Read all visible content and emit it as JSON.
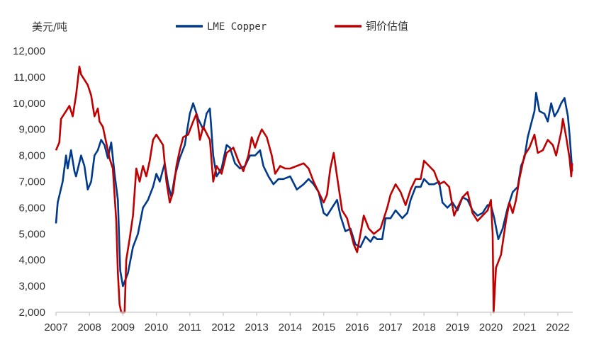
{
  "chart_data": {
    "type": "line",
    "ylabel": "美元/吨",
    "ylim": [
      2000,
      12000
    ],
    "xlim": [
      2007,
      2022.43
    ],
    "yticks": [
      "2,000",
      "3,000",
      "4,000",
      "5,000",
      "6,000",
      "7,000",
      "8,000",
      "9,000",
      "10,000",
      "11,000",
      "12,000"
    ],
    "xticks": [
      "2007",
      "2008",
      "2009",
      "2010",
      "2011",
      "2012",
      "2013",
      "2014",
      "2015",
      "2016",
      "2017",
      "2018",
      "2019",
      "2020",
      "2021",
      "2022"
    ],
    "grid": false,
    "legend_position": "top",
    "series": [
      {
        "name": "LME Copper",
        "color": "#003A8C",
        "x": [
          2007.0,
          2007.05,
          2007.2,
          2007.3,
          2007.35,
          2007.45,
          2007.55,
          2007.6,
          2007.75,
          2007.85,
          2007.95,
          2008.05,
          2008.15,
          2008.25,
          2008.35,
          2008.45,
          2008.55,
          2008.65,
          2008.75,
          2008.85,
          2008.92,
          2009.0,
          2009.15,
          2009.3,
          2009.45,
          2009.6,
          2009.75,
          2009.9,
          2010.0,
          2010.1,
          2010.25,
          2010.35,
          2010.45,
          2010.55,
          2010.7,
          2010.85,
          2011.0,
          2011.1,
          2011.25,
          2011.4,
          2011.5,
          2011.6,
          2011.7,
          2011.8,
          2011.95,
          2012.1,
          2012.2,
          2012.35,
          2012.5,
          2012.65,
          2012.8,
          2012.95,
          2013.1,
          2013.2,
          2013.35,
          2013.5,
          2013.65,
          2013.8,
          2014.0,
          2014.2,
          2014.4,
          2014.55,
          2014.7,
          2014.85,
          2015.0,
          2015.1,
          2015.25,
          2015.4,
          2015.5,
          2015.65,
          2015.8,
          2015.95,
          2016.1,
          2016.25,
          2016.4,
          2016.5,
          2016.6,
          2016.75,
          2016.85,
          2017.0,
          2017.15,
          2017.35,
          2017.5,
          2017.6,
          2017.75,
          2017.9,
          2018.0,
          2018.15,
          2018.3,
          2018.45,
          2018.55,
          2018.7,
          2018.85,
          2019.0,
          2019.15,
          2019.3,
          2019.45,
          2019.6,
          2019.75,
          2019.9,
          2020.0,
          2020.1,
          2020.22,
          2020.35,
          2020.5,
          2020.65,
          2020.8,
          2020.9,
          2021.0,
          2021.1,
          2021.2,
          2021.3,
          2021.35,
          2021.45,
          2021.6,
          2021.7,
          2021.8,
          2021.9,
          2022.0,
          2022.1,
          2022.2,
          2022.3,
          2022.35,
          2022.43
        ],
        "values": [
          5400,
          6200,
          7000,
          8000,
          7500,
          8200,
          7400,
          7200,
          8000,
          7600,
          6700,
          7000,
          8000,
          8200,
          8600,
          8400,
          7900,
          8500,
          7300,
          6300,
          3600,
          3000,
          3500,
          4500,
          5000,
          6000,
          6300,
          6800,
          7300,
          7000,
          7700,
          6900,
          6400,
          7200,
          7900,
          8400,
          9600,
          10000,
          9400,
          9000,
          9600,
          9800,
          8000,
          7200,
          7500,
          8400,
          8300,
          7700,
          7500,
          7600,
          8000,
          8000,
          8200,
          7600,
          7200,
          6900,
          7100,
          7100,
          7200,
          6700,
          6900,
          7100,
          6900,
          6600,
          5800,
          5700,
          6000,
          6300,
          5700,
          5100,
          5200,
          4600,
          4500,
          4900,
          4700,
          4900,
          4800,
          4800,
          5600,
          5600,
          5900,
          5600,
          5800,
          6300,
          6800,
          6800,
          7100,
          6900,
          6900,
          7000,
          6200,
          6000,
          6200,
          5900,
          6400,
          6300,
          5900,
          5700,
          5800,
          6100,
          6100,
          5600,
          4800,
          5200,
          6000,
          6600,
          6800,
          7600,
          7900,
          8700,
          9200,
          9700,
          10400,
          9700,
          9600,
          9300,
          10000,
          9500,
          9700,
          10000,
          10200,
          9500,
          8800,
          7400
        ]
      },
      {
        "name": "铜价估值",
        "color": "#C00000",
        "x": [
          2007.0,
          2007.1,
          2007.15,
          2007.3,
          2007.4,
          2007.5,
          2007.6,
          2007.7,
          2007.75,
          2007.85,
          2007.95,
          2008.05,
          2008.15,
          2008.25,
          2008.3,
          2008.4,
          2008.5,
          2008.6,
          2008.7,
          2008.8,
          2008.85,
          2008.9,
          2008.95,
          2009.05,
          2009.1,
          2009.2,
          2009.3,
          2009.4,
          2009.5,
          2009.6,
          2009.7,
          2009.8,
          2009.9,
          2010.0,
          2010.1,
          2010.2,
          2010.3,
          2010.4,
          2010.5,
          2010.6,
          2010.7,
          2010.8,
          2010.95,
          2011.1,
          2011.2,
          2011.3,
          2011.4,
          2011.6,
          2011.7,
          2011.8,
          2011.95,
          2012.1,
          2012.3,
          2012.45,
          2012.6,
          2012.75,
          2012.85,
          2012.95,
          2013.05,
          2013.15,
          2013.3,
          2013.45,
          2013.55,
          2013.7,
          2013.85,
          2014.0,
          2014.2,
          2014.4,
          2014.55,
          2014.7,
          2014.85,
          2015.0,
          2015.1,
          2015.2,
          2015.3,
          2015.4,
          2015.55,
          2015.7,
          2015.9,
          2016.0,
          2016.1,
          2016.2,
          2016.35,
          2016.5,
          2016.7,
          2016.9,
          2017.0,
          2017.15,
          2017.3,
          2017.45,
          2017.6,
          2017.75,
          2017.9,
          2018.0,
          2018.15,
          2018.3,
          2018.45,
          2018.6,
          2018.75,
          2018.9,
          2019.0,
          2019.15,
          2019.3,
          2019.45,
          2019.6,
          2019.75,
          2019.9,
          2020.0,
          2020.05,
          2020.08,
          2020.15,
          2020.3,
          2020.45,
          2020.55,
          2020.65,
          2020.75,
          2020.85,
          2021.0,
          2021.15,
          2021.3,
          2021.4,
          2021.55,
          2021.7,
          2021.85,
          2021.95,
          2022.1,
          2022.15,
          2022.25,
          2022.35,
          2022.4,
          2022.43
        ],
        "values": [
          8200,
          8500,
          9400,
          9700,
          9900,
          9500,
          10300,
          11400,
          11100,
          10900,
          10700,
          10300,
          9500,
          9800,
          9300,
          9100,
          8500,
          7900,
          7500,
          5500,
          3500,
          2300,
          2000,
          2000,
          4000,
          4800,
          5700,
          7500,
          7000,
          7600,
          7200,
          7800,
          8600,
          8800,
          8600,
          8400,
          7000,
          6200,
          6600,
          7600,
          8200,
          8700,
          8800,
          9300,
          9600,
          8600,
          9100,
          8600,
          7000,
          7600,
          7300,
          8100,
          8300,
          7800,
          7400,
          8000,
          8700,
          8300,
          8700,
          9000,
          8700,
          8000,
          7300,
          7600,
          7500,
          7500,
          7600,
          7700,
          7500,
          7000,
          6600,
          6200,
          6500,
          7500,
          8100,
          7200,
          5900,
          5600,
          4600,
          4300,
          5000,
          5700,
          5200,
          5000,
          5200,
          6000,
          6500,
          6900,
          6600,
          6100,
          6700,
          7100,
          7100,
          7800,
          7600,
          7400,
          6900,
          7000,
          6800,
          5700,
          6000,
          6400,
          6600,
          5800,
          5500,
          5700,
          5900,
          6300,
          5000,
          2000,
          3700,
          4200,
          5500,
          6200,
          5800,
          6300,
          7100,
          8000,
          8300,
          8800,
          8100,
          8200,
          8600,
          8400,
          8000,
          8900,
          9400,
          8700,
          7900,
          7200,
          7700
        ]
      }
    ]
  }
}
